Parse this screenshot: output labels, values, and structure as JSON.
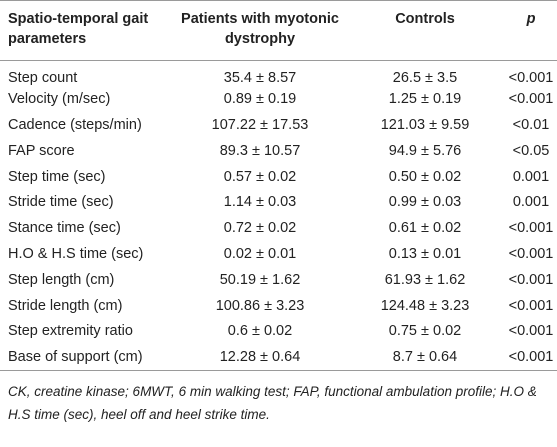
{
  "table": {
    "header": [
      "Spatio-temporal gait parameters",
      "Patients with myotonic dystrophy",
      "Controls",
      "p"
    ],
    "rows": [
      [
        "Step count",
        "35.4 ± 8.57",
        "26.5 ± 3.5",
        "<0.001"
      ],
      [
        "Velocity (m/sec)",
        "0.89 ± 0.19",
        "1.25 ± 0.19",
        "<0.001"
      ],
      [
        "Cadence (steps/min)",
        "107.22 ± 17.53",
        "121.03 ± 9.59",
        "<0.01"
      ],
      [
        "FAP score",
        "89.3 ± 10.57",
        "94.9 ± 5.76",
        "<0.05"
      ],
      [
        "Step time (sec)",
        "0.57 ± 0.02",
        "0.50 ± 0.02",
        "0.001"
      ],
      [
        "Stride time (sec)",
        "1.14 ± 0.03",
        "0.99 ± 0.03",
        "0.001"
      ],
      [
        "Stance time (sec)",
        "0.72 ± 0.02",
        "0.61 ± 0.02",
        "<0.001"
      ],
      [
        "H.O & H.S time (sec)",
        "0.02 ± 0.01",
        "0.13 ± 0.01",
        "<0.001"
      ],
      [
        "Step length (cm)",
        "50.19 ± 1.62",
        "61.93 ± 1.62",
        "<0.001"
      ],
      [
        "Stride length (cm)",
        "100.86 ± 3.23",
        "124.48 ± 3.23",
        "<0.001"
      ],
      [
        "Step extremity ratio",
        "0.6 ± 0.02",
        "0.75 ± 0.02",
        "<0.001"
      ],
      [
        "Base of support (cm)",
        "12.28 ± 0.64",
        "8.7 ± 0.64",
        "<0.001"
      ]
    ],
    "footnote": "CK, creatine kinase; 6MWT, 6 min walking test; FAP, functional ambulation profile; H.O & H.S time (sec), heel off and heel strike time."
  }
}
